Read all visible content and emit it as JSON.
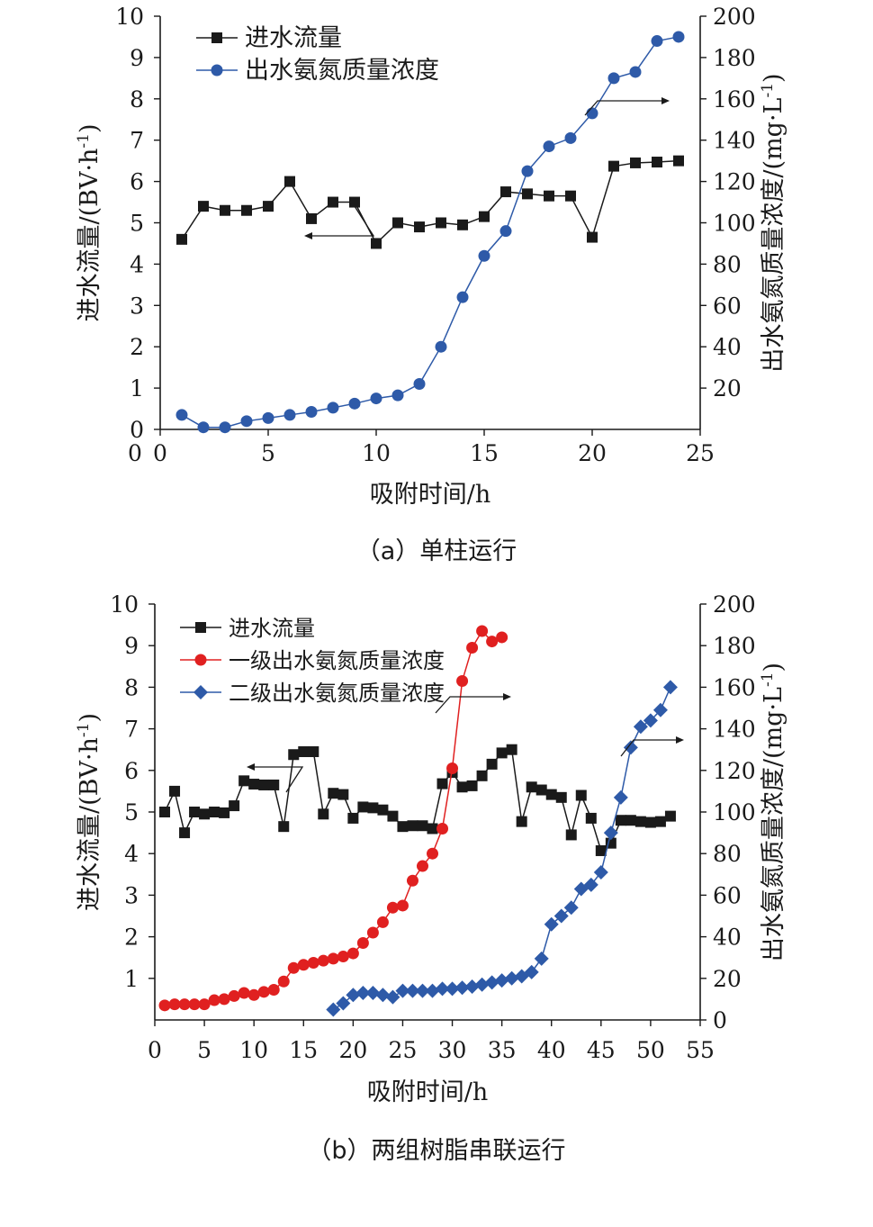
{
  "colors": {
    "black": "#1a1a1a",
    "blue": "#2e5aa8",
    "red": "#e02020"
  },
  "captions": {
    "a": "（a）单柱运行",
    "b": "（b）两组树脂串联运行"
  },
  "chart_data": [
    {
      "type": "line",
      "caption": "（a）单柱运行",
      "xlabel": "吸附时间/h",
      "ylabel_left": "进水流量/(BV·h",
      "ylabel_left_sup": "-1",
      "ylabel_left_end": ")",
      "ylabel_right": "出水氨氮质量浓度/(mg·L",
      "ylabel_right_sup": "-1",
      "ylabel_right_end": ")",
      "xlim": [
        0,
        25
      ],
      "xticks": [
        "0",
        "5",
        "10",
        "15",
        "20",
        "25"
      ],
      "ylim_left": [
        0,
        10
      ],
      "yticks_left": [
        "0",
        "1",
        "2",
        "3",
        "4",
        "5",
        "6",
        "7",
        "8",
        "9",
        "10"
      ],
      "ylim_right": [
        0,
        200
      ],
      "yticks_right": [
        "20",
        "40",
        "60",
        "80",
        "100",
        "120",
        "140",
        "160",
        "180",
        "200"
      ],
      "legend_position": "top-left",
      "series": [
        {
          "name": "进水流量",
          "axis": "left",
          "marker": "square",
          "color": "#1a1a1a",
          "x": [
            1,
            2,
            3,
            4,
            5,
            6,
            7,
            8,
            9,
            10,
            11,
            12,
            13,
            14,
            15,
            16,
            17,
            18,
            19,
            20,
            21,
            22,
            23,
            24
          ],
          "y": [
            4.6,
            5.4,
            5.3,
            5.3,
            5.4,
            6.0,
            5.1,
            5.5,
            5.5,
            4.5,
            5.0,
            4.9,
            5.0,
            4.95,
            5.15,
            5.75,
            5.7,
            5.65,
            5.65,
            4.65,
            6.37,
            6.45,
            6.47,
            6.5
          ]
        },
        {
          "name": "出水氨氮质量浓度",
          "axis": "right",
          "marker": "circle",
          "color": "#2e5aa8",
          "x": [
            1,
            2,
            3,
            4,
            5,
            6,
            7,
            8,
            9,
            10,
            11,
            12,
            13,
            14,
            15,
            16,
            17,
            18,
            19,
            20,
            21,
            22,
            23,
            24
          ],
          "y": [
            7,
            1,
            1,
            4,
            5.5,
            7,
            8.5,
            10.5,
            12.5,
            15,
            16.5,
            22,
            40,
            64,
            84,
            96,
            125,
            137,
            141,
            153,
            170,
            173,
            188,
            190
          ]
        }
      ],
      "annotations": [
        {
          "type": "arrow",
          "direction": "left",
          "series": "进水流量"
        },
        {
          "type": "arrow",
          "direction": "right",
          "series": "出水氨氮质量浓度"
        }
      ]
    },
    {
      "type": "line",
      "caption": "（b）两组树脂串联运行",
      "xlabel": "吸附时间/h",
      "ylabel_left": "进水流量/(BV·h",
      "ylabel_left_sup": "-1",
      "ylabel_left_end": ")",
      "ylabel_right": "出水氨氮质量浓度/(mg·L",
      "ylabel_right_sup": "-1",
      "ylabel_right_end": ")",
      "xlim": [
        0,
        55
      ],
      "xticks": [
        "0",
        "5",
        "10",
        "15",
        "20",
        "25",
        "30",
        "35",
        "40",
        "45",
        "50",
        "55"
      ],
      "ylim_left": [
        0,
        10
      ],
      "yticks_left": [
        "1",
        "2",
        "3",
        "4",
        "5",
        "6",
        "7",
        "8",
        "9",
        "10"
      ],
      "ylim_right": [
        0,
        200
      ],
      "yticks_right": [
        "0",
        "20",
        "40",
        "60",
        "80",
        "100",
        "120",
        "140",
        "160",
        "180",
        "200"
      ],
      "legend_position": "top-left",
      "series": [
        {
          "name": "进水流量",
          "axis": "left",
          "marker": "square",
          "color": "#1a1a1a",
          "x": [
            1,
            2,
            3,
            4,
            5,
            6,
            7,
            8,
            9,
            10,
            11,
            12,
            13,
            14,
            15,
            16,
            17,
            18,
            19,
            20,
            21,
            22,
            23,
            24,
            25,
            26,
            27,
            28,
            29,
            30,
            31,
            32,
            33,
            34,
            35,
            36,
            37,
            38,
            39,
            40,
            41,
            42,
            43,
            44,
            45,
            46,
            47,
            48,
            49,
            50,
            51,
            52
          ],
          "y": [
            5.0,
            5.5,
            4.5,
            5.0,
            4.95,
            5.0,
            4.98,
            5.15,
            5.75,
            5.67,
            5.65,
            5.65,
            4.65,
            6.38,
            6.45,
            6.45,
            4.95,
            5.45,
            5.42,
            4.85,
            5.12,
            5.1,
            5.05,
            4.9,
            4.65,
            4.67,
            4.67,
            4.6,
            5.68,
            5.95,
            5.6,
            5.63,
            5.87,
            6.15,
            6.42,
            6.5,
            4.77,
            5.6,
            5.53,
            5.42,
            5.35,
            4.45,
            5.4,
            4.85,
            4.07,
            4.25,
            4.8,
            4.8,
            4.77,
            4.75,
            4.77,
            4.9
          ]
        },
        {
          "name": "一级出水氨氮质量浓度",
          "axis": "right",
          "marker": "circle",
          "color": "#e02020",
          "x": [
            1,
            2,
            3,
            4,
            5,
            6,
            7,
            8,
            9,
            10,
            11,
            12,
            13,
            14,
            15,
            16,
            17,
            18,
            19,
            20,
            21,
            22,
            23,
            24,
            25,
            26,
            27,
            28,
            29,
            30,
            31,
            32,
            33,
            34,
            35
          ],
          "y": [
            7,
            7.5,
            7.5,
            7.5,
            7.5,
            9.5,
            10,
            11.5,
            13,
            12,
            13.5,
            14.5,
            18.5,
            25,
            26.5,
            27.5,
            28.5,
            29.5,
            30.5,
            32,
            37,
            42,
            47,
            54,
            55,
            67,
            74,
            80,
            92,
            121,
            163,
            179,
            187,
            182,
            184
          ]
        },
        {
          "name": "二级出水氨氮质量浓度",
          "axis": "right",
          "marker": "diamond",
          "color": "#2e5aa8",
          "x": [
            18,
            19,
            20,
            21,
            22,
            23,
            24,
            25,
            26,
            27,
            28,
            29,
            30,
            31,
            32,
            33,
            34,
            35,
            36,
            37,
            38,
            39,
            40,
            41,
            42,
            43,
            44,
            45,
            46,
            47,
            48,
            49,
            50,
            51,
            52
          ],
          "y": [
            5,
            8,
            12,
            13,
            13,
            12,
            11,
            14,
            14,
            14,
            14,
            15,
            15,
            15.5,
            16,
            17,
            18,
            19,
            20,
            21,
            23,
            29.5,
            46,
            50,
            54,
            63,
            65,
            71,
            90,
            107,
            131,
            141,
            144,
            149,
            160
          ]
        }
      ],
      "annotations": [
        {
          "type": "arrow",
          "direction": "left",
          "series": "进水流量"
        },
        {
          "type": "arrow",
          "direction": "right",
          "series": "一级出水氨氮质量浓度"
        },
        {
          "type": "arrow",
          "direction": "right",
          "series": "二级出水氨氮质量浓度"
        }
      ]
    }
  ]
}
